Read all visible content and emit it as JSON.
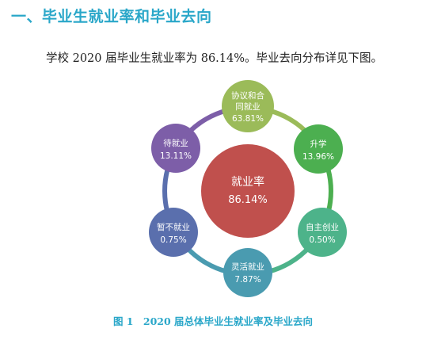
{
  "section": {
    "title": "一、毕业生就业率和毕业去向"
  },
  "intro": {
    "text": "学校 2020 届毕业生就业率为 86.14%。毕业去向分布详见下图。"
  },
  "diagram": {
    "center": {
      "label": "就业率",
      "value": "86.14%",
      "color": "#c0504d"
    },
    "nodes": [
      {
        "label": "协议和合同就业",
        "line1": "协议和合",
        "line2": "同就业",
        "value": "63.81%",
        "color": "#9bbb59"
      },
      {
        "label": "升学",
        "line1": "升学",
        "line2": "",
        "value": "13.96%",
        "color": "#4caf50"
      },
      {
        "label": "自主创业",
        "line1": "自主创业",
        "line2": "",
        "value": "0.50%",
        "color": "#4db38a"
      },
      {
        "label": "灵活就业",
        "line1": "灵活就业",
        "line2": "",
        "value": "7.87%",
        "color": "#4a9bb0"
      },
      {
        "label": "暂不就业",
        "line1": "暂不就业",
        "line2": "",
        "value": "0.75%",
        "color": "#5a6fad"
      },
      {
        "label": "待就业",
        "line1": "待就业",
        "line2": "",
        "value": "13.11%",
        "color": "#7d5ea8"
      }
    ]
  },
  "caption": {
    "figure": "图 1",
    "text": "2020 届总体毕业生就业率及毕业去向"
  }
}
